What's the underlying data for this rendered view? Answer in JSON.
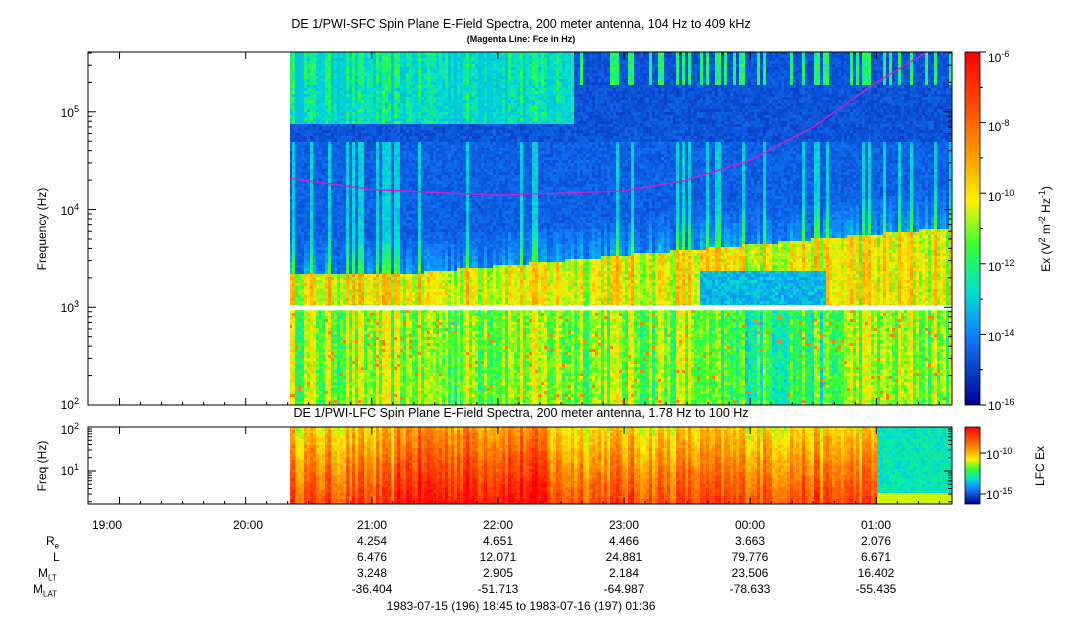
{
  "chart_data": [
    {
      "type": "heatmap",
      "title": "DE 1/PWI-SFC  Spin Plane E-Field Spectra, 200 meter antenna, 104 Hz to 409 kHz",
      "subtitle": "(Magenta Line: Fce in Hz)",
      "ylabel": "Frequency (Hz)",
      "yscale": "log",
      "ylim": [
        100,
        409000
      ],
      "y_ticks": [
        {
          "base": "10",
          "exp": "2"
        },
        {
          "base": "10",
          "exp": "3"
        },
        {
          "base": "10",
          "exp": "4"
        },
        {
          "base": "10",
          "exp": "5"
        }
      ],
      "colorbar": {
        "label_main": "Ex (V",
        "label_sup1": "2",
        "label_mid": " m",
        "label_sup2": "-2",
        "label_mid2": " Hz",
        "label_sup3": "-1",
        "label_end": ")",
        "scale": "log",
        "range": [
          1e-16,
          1e-06
        ],
        "ticks": [
          {
            "base": "10",
            "exp": "-6"
          },
          {
            "base": "10",
            "exp": "-8"
          },
          {
            "base": "10",
            "exp": "-10"
          },
          {
            "base": "10",
            "exp": "-12"
          },
          {
            "base": "10",
            "exp": "-14"
          },
          {
            "base": "10",
            "exp": "-16"
          }
        ]
      },
      "data_start": "20:19",
      "data_end": "01:36",
      "fce_line": {
        "color": "#d020d0",
        "times_hours": [
          20.33,
          21.0,
          22.0,
          23.0,
          23.5,
          24.0,
          24.5,
          25.0,
          25.4
        ],
        "freq_hz": [
          21000,
          16000,
          14000,
          15500,
          20000,
          32000,
          70000,
          200000,
          409000
        ]
      }
    },
    {
      "type": "heatmap",
      "title": "DE 1/PWI-LFC  Spin Plane E-Field Spectra, 200 meter antenna, 1.78 Hz to 100 Hz",
      "ylabel": "Freq (Hz)",
      "yscale": "log",
      "ylim": [
        1.78,
        100
      ],
      "y_ticks": [
        {
          "base": "10",
          "exp": "1"
        },
        {
          "base": "10",
          "exp": "2"
        }
      ],
      "colorbar": {
        "label": "LFC Ex",
        "scale": "log",
        "ticks": [
          {
            "base": "10",
            "exp": "-10"
          },
          {
            "base": "10",
            "exp": "-15"
          }
        ]
      }
    }
  ],
  "x_axis": {
    "time_ticks": [
      "19:00",
      "20:00",
      "21:00",
      "22:00",
      "23:00",
      "00:00",
      "01:00"
    ],
    "time_range": "1983-07-15 (196) 18:45 to 1983-07-16 (197) 01:36"
  },
  "ephemeris": {
    "labels": [
      {
        "main": "R",
        "sub": "e"
      },
      {
        "main": "L",
        "sub": ""
      },
      {
        "main": "M",
        "sub": "LT"
      },
      {
        "main": "M",
        "sub": "LAT"
      }
    ],
    "columns": [
      {
        "time": "21:00",
        "Re": "4.254",
        "L": "6.476",
        "MLT": "3.248",
        "MLAT": "-36.404"
      },
      {
        "time": "22:00",
        "Re": "4.651",
        "L": "12.071",
        "MLT": "2.905",
        "MLAT": "-51.713"
      },
      {
        "time": "23:00",
        "Re": "4.466",
        "L": "24.881",
        "MLT": "2.184",
        "MLAT": "-64.987"
      },
      {
        "time": "00:00",
        "Re": "3.663",
        "L": "79.776",
        "MLT": "23.506",
        "MLAT": "-78.633"
      },
      {
        "time": "01:00",
        "Re": "2.076",
        "L": "6.671",
        "MLT": "16.402",
        "MLAT": "-55.435"
      }
    ]
  }
}
